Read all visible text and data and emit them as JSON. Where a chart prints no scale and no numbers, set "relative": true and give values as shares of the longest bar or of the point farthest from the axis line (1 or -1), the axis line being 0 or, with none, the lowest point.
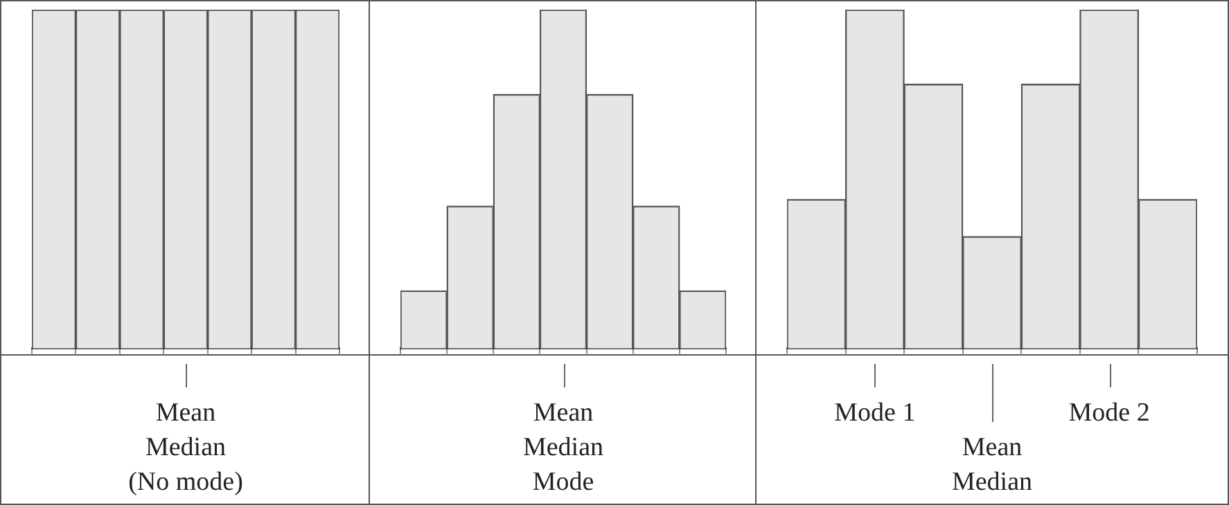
{
  "chart_data": [
    {
      "type": "bar",
      "relative": true,
      "categories": [
        null,
        null,
        null,
        null,
        null,
        null,
        null
      ],
      "values": [
        1,
        1,
        1,
        1,
        1,
        1,
        1
      ],
      "color": "#e6e6e6",
      "annotations": [
        "Mean\nMedian\n(No mode)"
      ]
    },
    {
      "type": "bar",
      "relative": true,
      "categories": [
        null,
        null,
        null,
        null,
        null,
        null,
        null
      ],
      "values": [
        0.17,
        0.42,
        0.75,
        1,
        0.75,
        0.42,
        0.17
      ],
      "color": "#e6e6e6",
      "annotations": [
        "Mean\nMedian\nMode"
      ]
    },
    {
      "type": "bar",
      "relative": true,
      "categories": [
        null,
        null,
        null,
        null,
        null,
        null,
        null
      ],
      "values": [
        0.44,
        1,
        0.78,
        0.33,
        0.78,
        1,
        0.44
      ],
      "color": "#e6e6e6",
      "annotations": [
        "Mode 1",
        "Mean\nMedian",
        "Mode 2"
      ]
    }
  ]
}
